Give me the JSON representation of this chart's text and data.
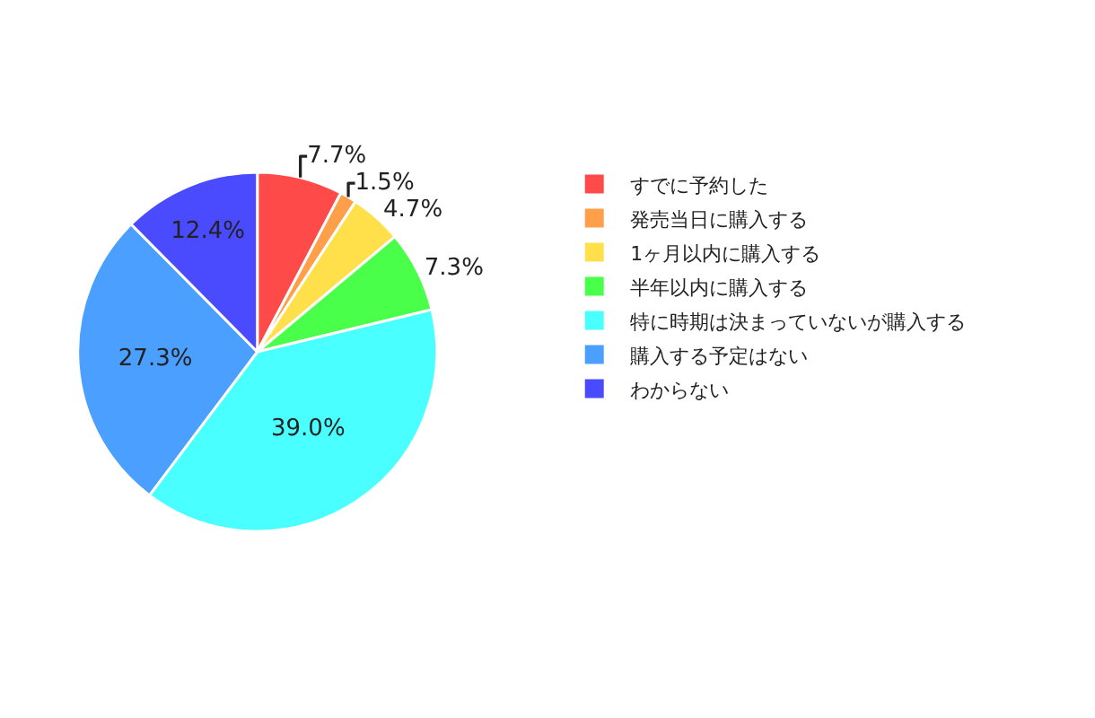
{
  "chart_data": {
    "type": "pie",
    "categories": [
      "すでに予約した",
      "発売当日に購入する",
      "1ヶ月以内に購入する",
      "半年以内に購入する",
      "特に時期は決まっていないが購入する",
      "購入する予定はない",
      "わからない"
    ],
    "values": [
      7.7,
      1.5,
      4.7,
      7.3,
      39.0,
      27.3,
      12.4
    ],
    "value_labels": [
      "7.7%",
      "1.5%",
      "4.7%",
      "7.3%",
      "39.0%",
      "27.3%",
      "12.4%"
    ],
    "colors": [
      "#ff4a4a",
      "#ff9f4a",
      "#ffe04a",
      "#4aff4a",
      "#4affff",
      "#4a9fff",
      "#4a4aff"
    ],
    "legend": "right"
  }
}
